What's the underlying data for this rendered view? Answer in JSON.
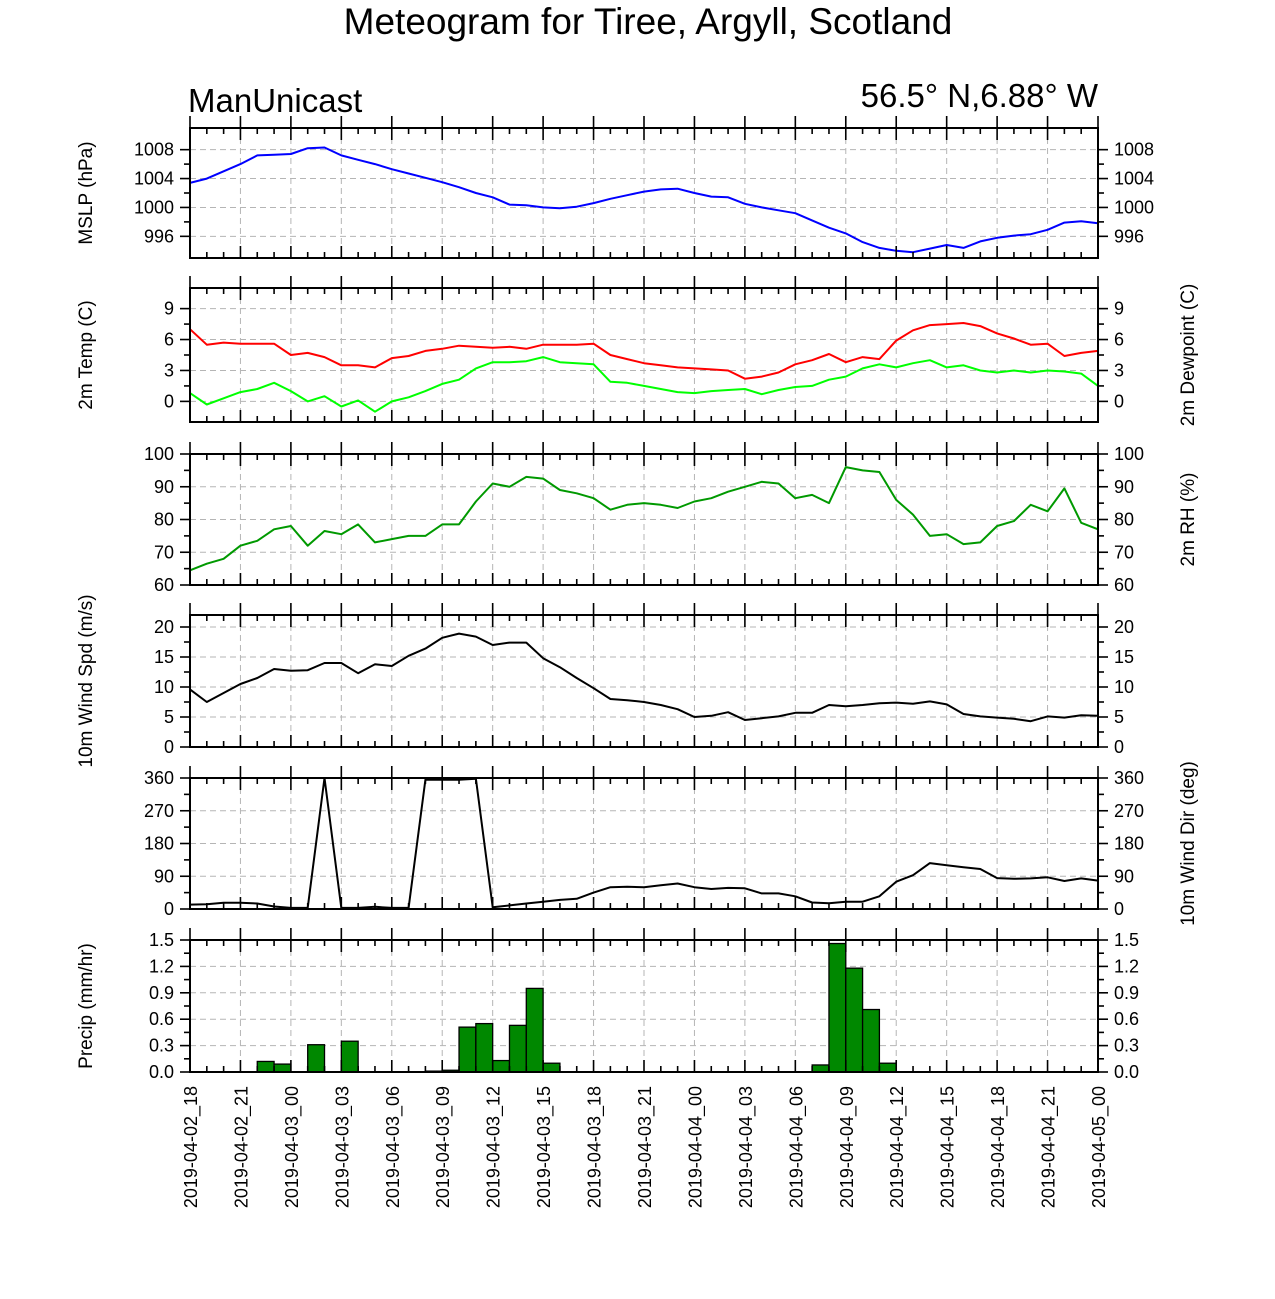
{
  "title": "Meteogram for Tiree, Argyll, Scotland",
  "model": "ManUnicast",
  "location": "56.5° N,6.88° W",
  "colors": {
    "mslp": "#0000ff",
    "temp": "#ff0000",
    "dewpoint": "#00ff00",
    "rh": "#009900",
    "wind": "#000000",
    "precip_fill": "#008800",
    "grid": "#b5b5b5"
  },
  "chart_data": {
    "type": "line",
    "x_tick_labels": [
      "2019-04-02_18",
      "2019-04-02_21",
      "2019-04-03_00",
      "2019-04-03_03",
      "2019-04-03_06",
      "2019-04-03_09",
      "2019-04-03_12",
      "2019-04-03_15",
      "2019-04-03_18",
      "2019-04-03_21",
      "2019-04-04_00",
      "2019-04-04_03",
      "2019-04-04_06",
      "2019-04-04_09",
      "2019-04-04_12",
      "2019-04-04_15",
      "2019-04-04_18",
      "2019-04-04_21",
      "2019-04-05_00"
    ],
    "x_hours": [
      0,
      1,
      2,
      3,
      4,
      5,
      6,
      7,
      8,
      9,
      10,
      11,
      12,
      13,
      14,
      15,
      16,
      17,
      18,
      19,
      20,
      21,
      22,
      23,
      24,
      25,
      26,
      27,
      28,
      29,
      30,
      31,
      32,
      33,
      34,
      35,
      36,
      37,
      38,
      39,
      40,
      41,
      42,
      43,
      44,
      45,
      46,
      47,
      48,
      49,
      50,
      51,
      52,
      53,
      54
    ],
    "panels": [
      {
        "id": "mslp",
        "ylabel_left": "MSLP (hPa)",
        "ylabel_right": "",
        "ylim": [
          993,
          1011
        ],
        "yticks": [
          996,
          1000,
          1004,
          1008
        ],
        "ytick_labels": [
          "996",
          "1000",
          "1004",
          "1008"
        ],
        "right_ticks": true,
        "series": [
          {
            "color": "#0000ff",
            "values": [
              1003.4,
              1004.0,
              1005.0,
              1006.0,
              1007.2,
              1007.3,
              1007.4,
              1008.2,
              1008.3,
              1007.2,
              1006.6,
              1006.0,
              1005.3,
              1004.7,
              1004.1,
              1003.5,
              1002.8,
              1002.0,
              1001.4,
              1000.4,
              1000.3,
              1000.0,
              999.9,
              1000.1,
              1000.6,
              1001.2,
              1001.7,
              1002.2,
              1002.5,
              1002.6,
              1002.0,
              1001.5,
              1001.4,
              1000.5,
              1000.0,
              999.6,
              999.2,
              998.2,
              997.2,
              996.4,
              995.2,
              994.4,
              994.0,
              993.8,
              994.3,
              994.8,
              994.4,
              995.3,
              995.8,
              996.1,
              996.3,
              996.9,
              997.9,
              998.1,
              997.8
            ]
          }
        ]
      },
      {
        "id": "temp",
        "ylabel_left": "2m Temp (C)",
        "ylabel_right": "2m Dewpoint (C)",
        "ylim": [
          -2,
          11
        ],
        "yticks": [
          0,
          3,
          6,
          9
        ],
        "ytick_labels": [
          "0",
          "3",
          "6",
          "9"
        ],
        "right_ticks": true,
        "series": [
          {
            "color": "#ff0000",
            "values": [
              7.0,
              5.5,
              5.7,
              5.6,
              5.6,
              5.6,
              4.5,
              4.7,
              4.3,
              3.5,
              3.5,
              3.3,
              4.2,
              4.4,
              4.9,
              5.1,
              5.4,
              5.3,
              5.2,
              5.3,
              5.1,
              5.5,
              5.5,
              5.5,
              5.6,
              4.5,
              4.1,
              3.7,
              3.5,
              3.3,
              3.2,
              3.1,
              3.0,
              2.2,
              2.4,
              2.8,
              3.6,
              4.0,
              4.6,
              3.8,
              4.3,
              4.1,
              5.9,
              6.9,
              7.4,
              7.5,
              7.6,
              7.3,
              6.6,
              6.1,
              5.5,
              5.6,
              4.4,
              4.7,
              4.9
            ]
          },
          {
            "color": "#00ff00",
            "values": [
              0.8,
              -0.3,
              0.3,
              0.9,
              1.2,
              1.8,
              1.0,
              0.0,
              0.5,
              -0.5,
              0.1,
              -1.0,
              0.0,
              0.4,
              1.0,
              1.7,
              2.1,
              3.2,
              3.8,
              3.8,
              3.9,
              4.3,
              3.8,
              3.7,
              3.6,
              1.9,
              1.8,
              1.5,
              1.2,
              0.9,
              0.8,
              1.0,
              1.1,
              1.2,
              0.7,
              1.1,
              1.4,
              1.5,
              2.1,
              2.4,
              3.2,
              3.6,
              3.3,
              3.7,
              4.0,
              3.3,
              3.5,
              3.0,
              2.8,
              3.0,
              2.8,
              3.0,
              2.9,
              2.7,
              1.5
            ]
          }
        ]
      },
      {
        "id": "rh",
        "ylabel_left": "",
        "ylabel_right": "2m RH (%)",
        "ylim": [
          60,
          100
        ],
        "yticks": [
          60,
          70,
          80,
          90,
          100
        ],
        "ytick_labels": [
          "60",
          "70",
          "80",
          "90",
          "100"
        ],
        "right_ticks": true,
        "series": [
          {
            "color": "#009900",
            "values": [
              64.5,
              66.5,
              68.0,
              72.0,
              73.5,
              77.0,
              78.0,
              72.0,
              76.5,
              75.5,
              78.5,
              73.0,
              74.0,
              75.0,
              75.0,
              78.5,
              78.5,
              85.5,
              91.0,
              90.0,
              93.0,
              92.5,
              89.0,
              88.0,
              86.5,
              83.0,
              84.5,
              85.0,
              84.5,
              83.5,
              85.5,
              86.5,
              88.5,
              90.0,
              91.5,
              91.0,
              86.5,
              87.5,
              85.0,
              96.0,
              95.0,
              94.5,
              86.0,
              81.5,
              75.0,
              75.5,
              72.5,
              73.0,
              78.0,
              79.5,
              84.5,
              82.5,
              89.5,
              79.0,
              77.0
            ]
          }
        ]
      },
      {
        "id": "wind_speed",
        "ylabel_left": "10m Wind Spd (m/s)",
        "ylabel_right": "",
        "ylim": [
          0,
          22
        ],
        "yticks": [
          0,
          5,
          10,
          15,
          20
        ],
        "ytick_labels": [
          "0",
          "5",
          "10",
          "15",
          "20"
        ],
        "right_ticks": true,
        "series": [
          {
            "color": "#000000",
            "values": [
              9.6,
              7.5,
              9.0,
              10.5,
              11.5,
              13.0,
              12.7,
              12.8,
              14.0,
              14.0,
              12.3,
              13.8,
              13.5,
              15.2,
              16.4,
              18.2,
              18.9,
              18.4,
              17.0,
              17.4,
              17.4,
              14.8,
              13.3,
              11.5,
              9.8,
              8.0,
              7.8,
              7.5,
              7.0,
              6.3,
              5.0,
              5.2,
              5.8,
              4.5,
              4.8,
              5.1,
              5.7,
              5.7,
              7.0,
              6.8,
              7.0,
              7.3,
              7.4,
              7.2,
              7.6,
              7.1,
              5.5,
              5.1,
              4.9,
              4.7,
              4.3,
              5.1,
              4.9,
              5.3,
              5.2
            ]
          }
        ]
      },
      {
        "id": "wind_dir",
        "ylabel_left": "",
        "ylabel_right": "10m Wind Dir (deg)",
        "ylim": [
          0,
          360
        ],
        "yticks": [
          0,
          90,
          180,
          270,
          360
        ],
        "ytick_labels": [
          "0",
          "90",
          "180",
          "270",
          "360"
        ],
        "right_ticks": true,
        "series": [
          {
            "color": "#000000",
            "values": [
              12,
              13,
              17,
              17,
              15,
              7,
              3,
              3,
              360,
              3,
              3,
              6,
              3,
              3,
              355,
              355,
              355,
              358,
              5,
              10,
              15,
              20,
              25,
              28,
              45,
              60,
              61,
              60,
              65,
              70,
              60,
              55,
              58,
              57,
              43,
              43,
              35,
              18,
              16,
              20,
              20,
              35,
              75,
              93,
              126,
              120,
              115,
              110,
              85,
              83,
              84,
              87,
              77,
              84,
              78
            ]
          }
        ]
      },
      {
        "id": "precip",
        "ylabel_left": "Precip (mm/hr)",
        "ylabel_right": "",
        "ylim": [
          0,
          1.5
        ],
        "yticks": [
          0,
          0.3,
          0.6,
          0.9,
          1.2,
          1.5
        ],
        "ytick_labels": [
          "0.0",
          "0.3",
          "0.6",
          "0.9",
          "1.2",
          "1.5"
        ],
        "right_ticks": true,
        "bars": {
          "color": "#008800",
          "values": [
            0,
            0,
            0,
            0,
            0.12,
            0.09,
            0,
            0.31,
            0,
            0.35,
            0,
            0,
            0,
            0,
            0.01,
            0.02,
            0.51,
            0.55,
            0.13,
            0.53,
            0.95,
            0.1,
            0,
            0,
            0,
            0,
            0,
            0,
            0,
            0,
            0,
            0,
            0,
            0,
            0,
            0,
            0,
            0.08,
            1.46,
            1.18,
            0.71,
            0.1,
            0,
            0,
            0,
            0,
            0,
            0,
            0,
            0,
            0,
            0,
            0,
            0
          ]
        }
      }
    ]
  }
}
